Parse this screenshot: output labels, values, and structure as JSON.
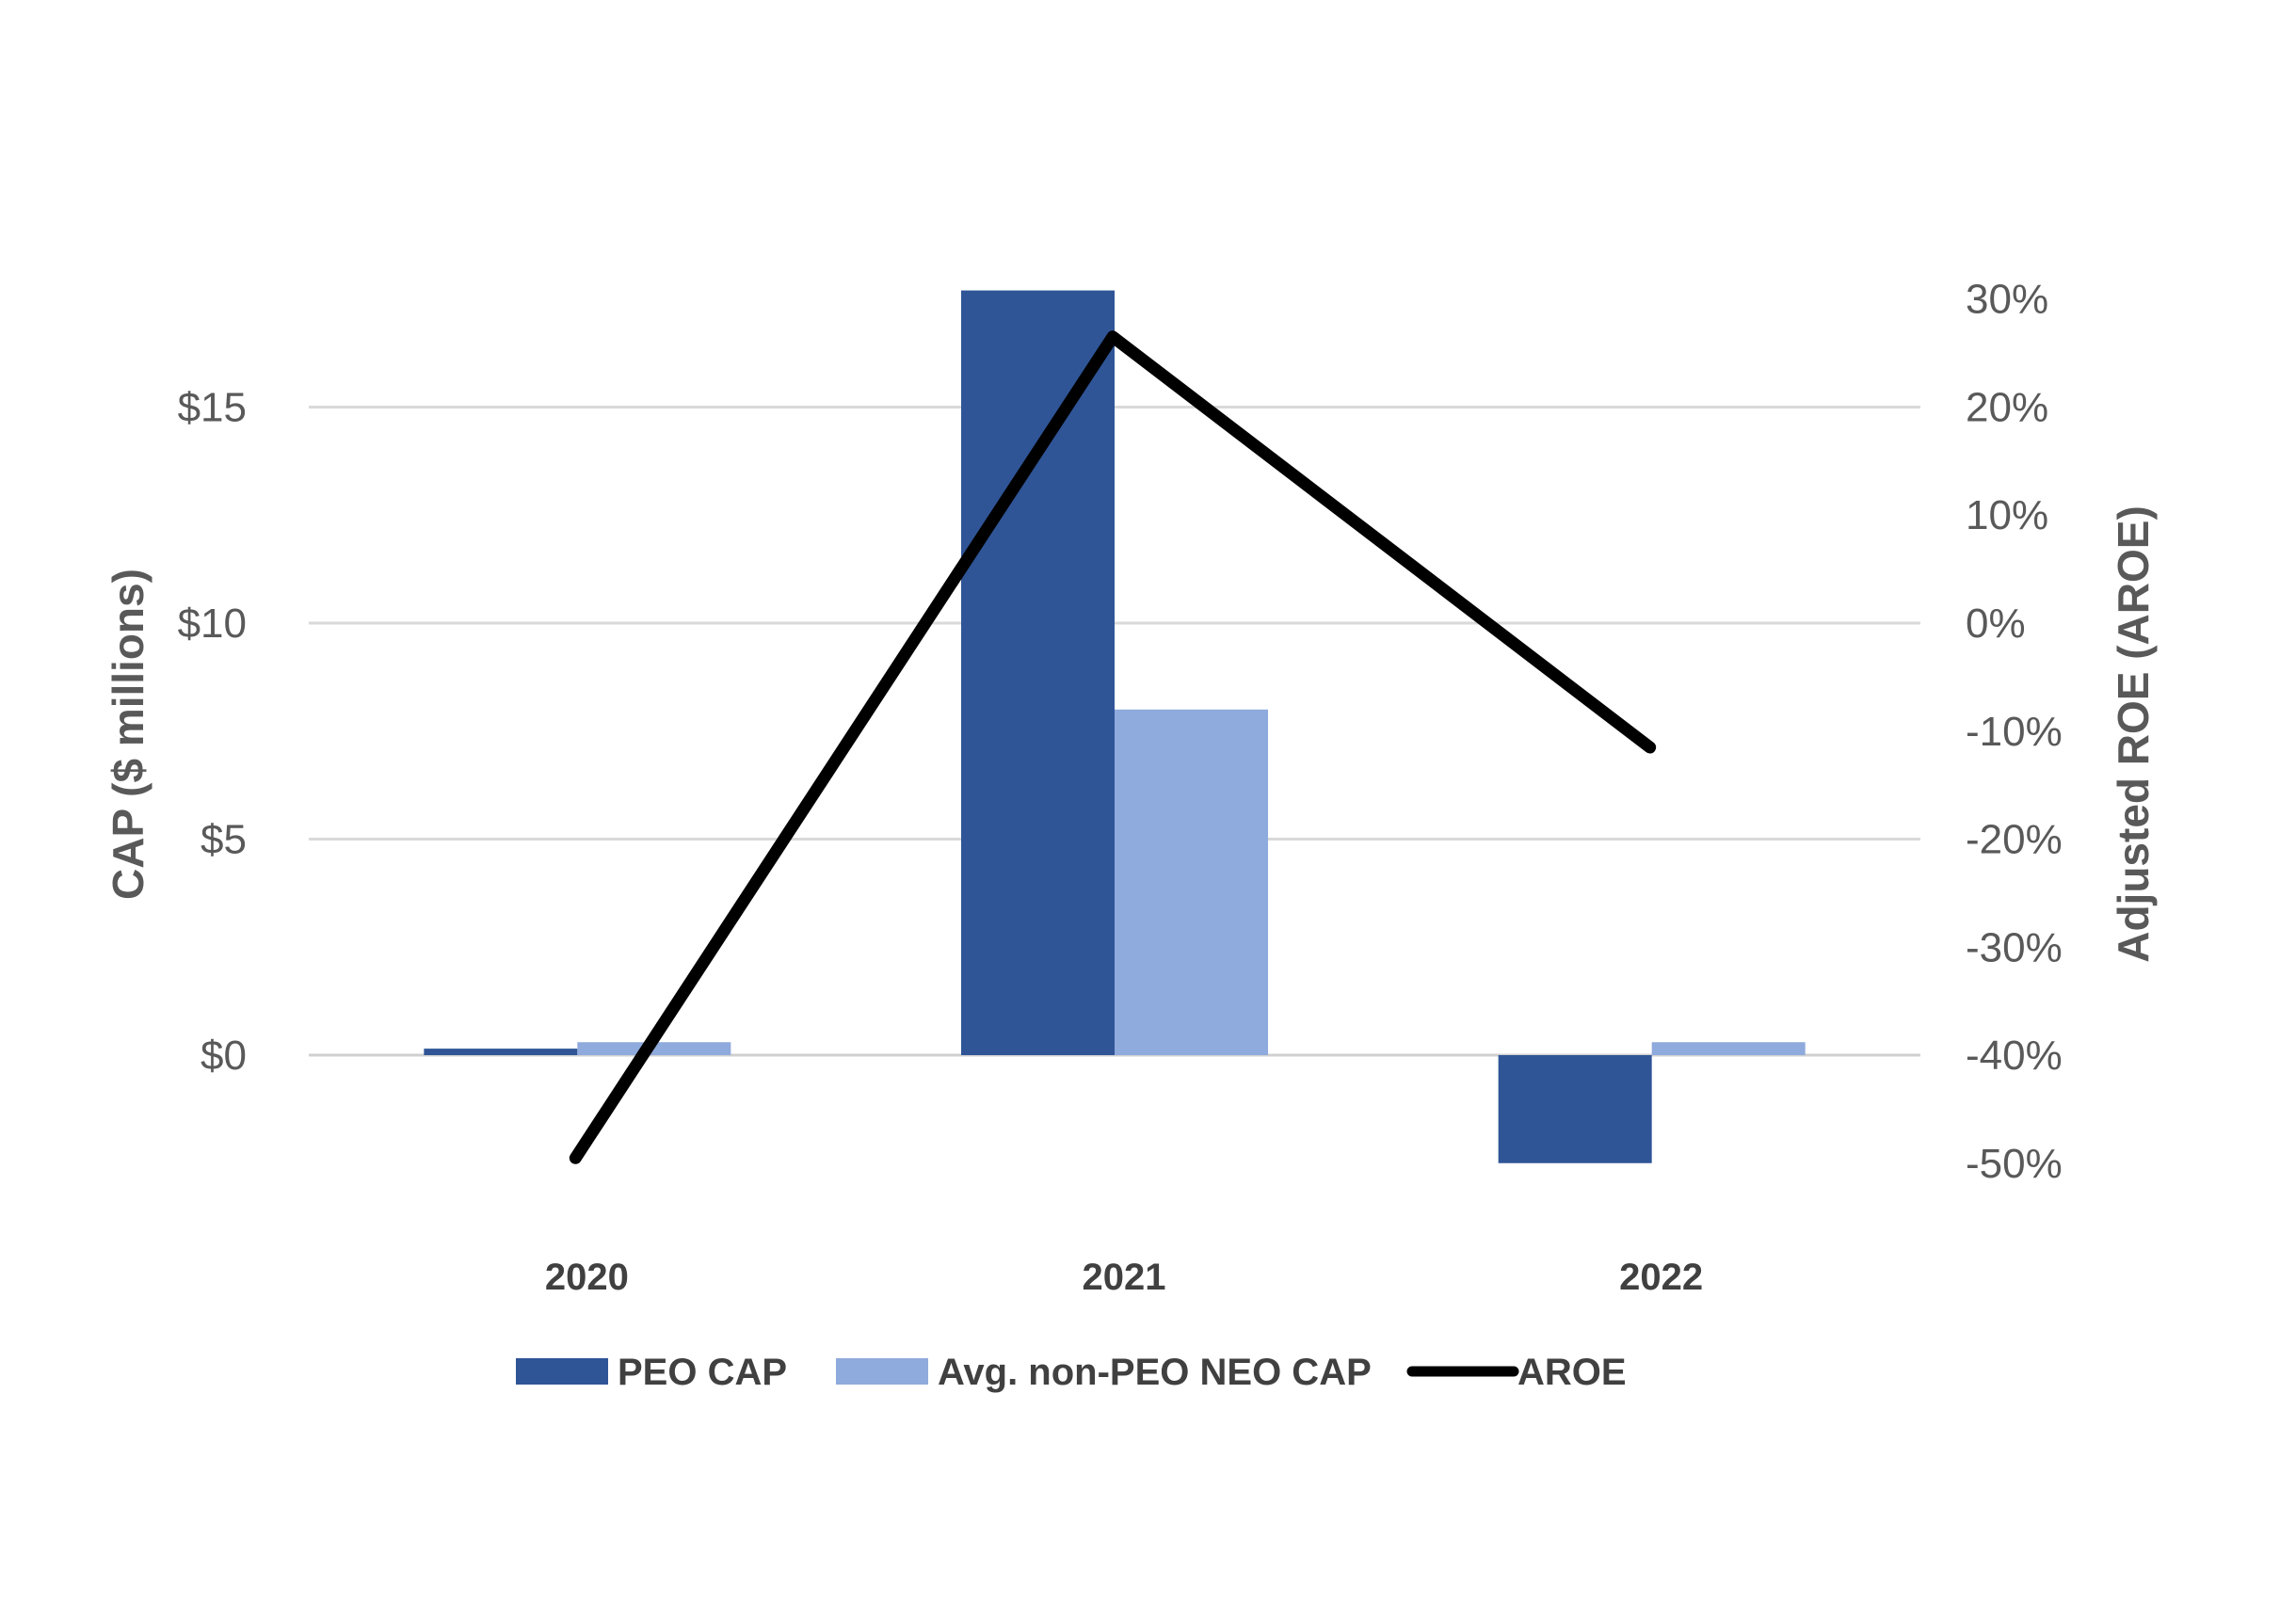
{
  "chart_data": {
    "type": "bar",
    "categories": [
      "2020",
      "2021",
      "2022"
    ],
    "series": [
      {
        "name": "PEO CAP",
        "kind": "bar",
        "axis": "left",
        "color": "#2F5597",
        "values": [
          0.15,
          17.7,
          -2.5
        ]
      },
      {
        "name": "Avg. non-PEO NEO CAP",
        "kind": "bar",
        "axis": "left",
        "color": "#8FAADC",
        "values": [
          0.3,
          8.0,
          0.3
        ]
      },
      {
        "name": "AROE",
        "kind": "line",
        "axis": "right",
        "color": "#000000",
        "values": [
          -49.5,
          26.5,
          -11.5
        ]
      }
    ],
    "left_axis": {
      "label": "CAP ($ millions)",
      "ticks": [
        0,
        5,
        10,
        15
      ],
      "tick_labels": [
        "$0",
        "$5",
        "$10",
        "$15"
      ]
    },
    "right_axis": {
      "label": "Adjusted ROE (AROE)",
      "ticks": [
        -50,
        -40,
        -30,
        -20,
        -10,
        0,
        10,
        20,
        30
      ],
      "tick_labels": [
        "-50%",
        "-40%",
        "-30%",
        "-20%",
        "-10%",
        "0%",
        "10%",
        "20%",
        "30%"
      ]
    },
    "ylim_left": [
      -3.5,
      19
    ],
    "ylim_right": [
      -55,
      30
    ],
    "grid": true,
    "legend_position": "bottom"
  }
}
